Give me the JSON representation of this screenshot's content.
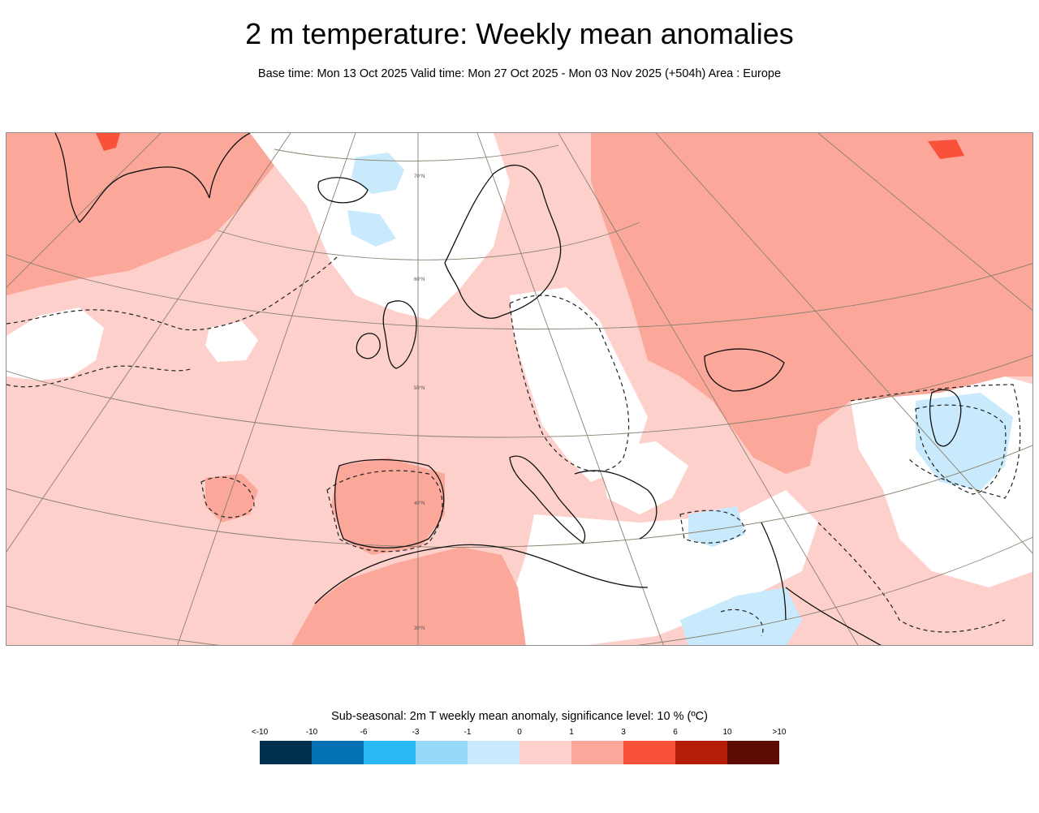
{
  "header": {
    "title": "2 m temperature: Weekly mean anomalies",
    "subtitle": "Base time: Mon 13 Oct 2025 Valid time: Mon 27 Oct 2025 - Mon 03 Nov 2025 (+504h) Area : Europe"
  },
  "map": {
    "area": "Europe",
    "parallel_labels": [
      "70°N",
      "60°N",
      "50°N",
      "40°N",
      "30°N"
    ],
    "anomaly_colors": {
      "weak_positive": "#fdd0cb",
      "moderate_positive": "#fba79a",
      "strong_positive": "#f9523a",
      "weak_negative": "#c9eafc",
      "neutral": "#ffffff"
    }
  },
  "legend": {
    "title": "Sub-seasonal: 2m T weekly mean anomaly, significance level: 10 % (ºC)",
    "ticks": [
      "<-10",
      "-10",
      "-6",
      "-3",
      "-1",
      "0",
      "1",
      "3",
      "6",
      "10",
      ">10"
    ],
    "colors": [
      "#01304f",
      "#0471b5",
      "#2ab9f3",
      "#97d9fb",
      "#c9eafc",
      "#fdd0cb",
      "#fba79a",
      "#f9523a",
      "#b31d0a",
      "#5c0b03"
    ]
  }
}
